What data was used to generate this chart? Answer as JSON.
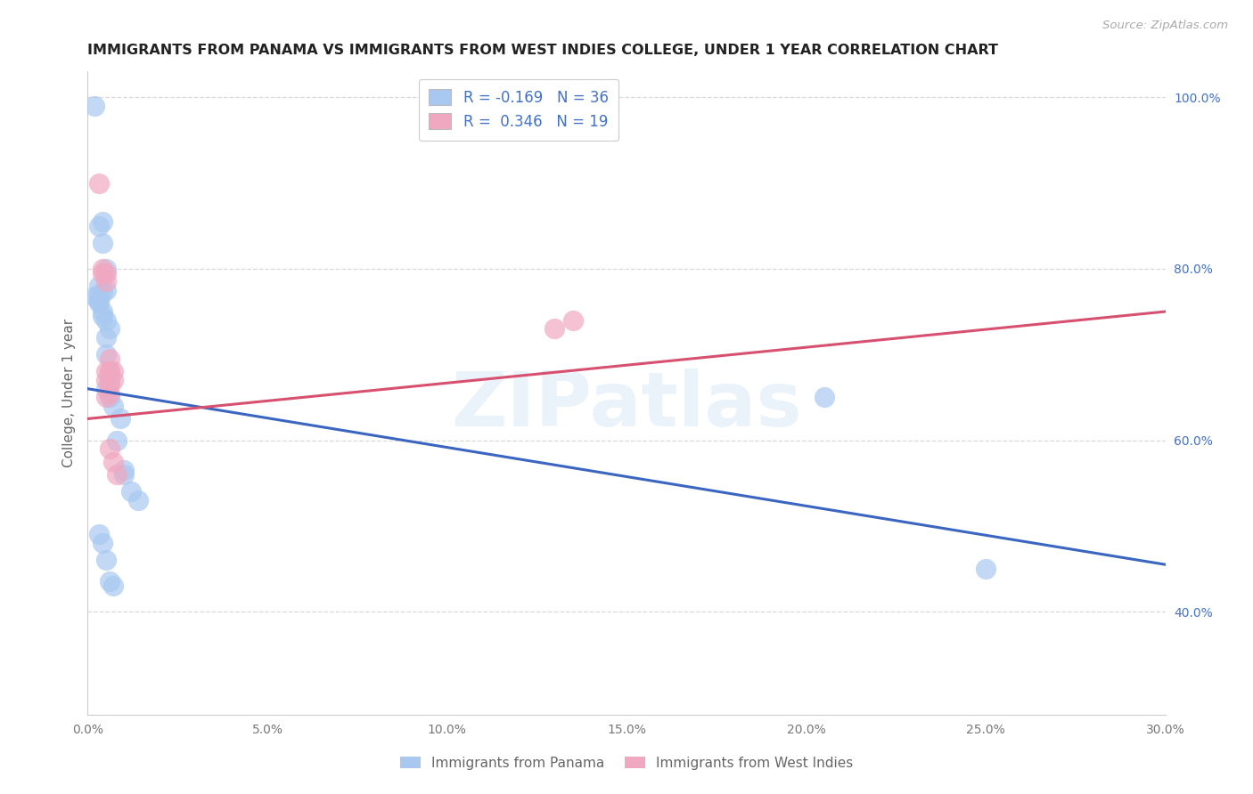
{
  "title": "IMMIGRANTS FROM PANAMA VS IMMIGRANTS FROM WEST INDIES COLLEGE, UNDER 1 YEAR CORRELATION CHART",
  "source": "Source: ZipAtlas.com",
  "ylabel": "College, Under 1 year",
  "xlim": [
    0.0,
    0.3
  ],
  "ylim": [
    0.28,
    1.03
  ],
  "xtick_values": [
    0.0,
    0.05,
    0.1,
    0.15,
    0.2,
    0.25,
    0.3
  ],
  "xtick_labels": [
    "0.0%",
    "5.0%",
    "10.0%",
    "15.0%",
    "20.0%",
    "25.0%",
    "30.0%"
  ],
  "ytick_values_right": [
    0.4,
    0.6,
    0.8,
    1.0
  ],
  "ytick_labels_right": [
    "40.0%",
    "60.0%",
    "80.0%",
    "100.0%"
  ],
  "blue_scatter_color": "#a8c8f0",
  "pink_scatter_color": "#f0a8c0",
  "blue_line_color": "#3a65c0",
  "pink_line_color": "#d85070",
  "legend_blue_label": "R = -0.169   N = 36",
  "legend_pink_label": "R =  0.346   N = 19",
  "watermark": "ZIPatlas",
  "background_color": "#ffffff",
  "grid_color": "#d8d8d8",
  "panama_x": [
    0.002,
    0.004,
    0.003,
    0.004,
    0.005,
    0.003,
    0.005,
    0.004,
    0.003,
    0.002,
    0.003,
    0.003,
    0.004,
    0.004,
    0.005,
    0.006,
    0.005,
    0.005,
    0.006,
    0.006,
    0.005,
    0.006,
    0.007,
    0.009,
    0.008,
    0.01,
    0.01,
    0.012,
    0.014,
    0.003,
    0.004,
    0.005,
    0.006,
    0.007,
    0.205,
    0.25
  ],
  "panama_y": [
    0.99,
    0.855,
    0.85,
    0.83,
    0.8,
    0.78,
    0.775,
    0.773,
    0.77,
    0.768,
    0.762,
    0.76,
    0.75,
    0.745,
    0.74,
    0.73,
    0.72,
    0.7,
    0.68,
    0.67,
    0.66,
    0.65,
    0.64,
    0.625,
    0.6,
    0.565,
    0.56,
    0.54,
    0.53,
    0.49,
    0.48,
    0.46,
    0.435,
    0.43,
    0.65,
    0.45
  ],
  "wi_x": [
    0.003,
    0.004,
    0.004,
    0.005,
    0.005,
    0.005,
    0.005,
    0.006,
    0.006,
    0.006,
    0.006,
    0.007,
    0.007,
    0.005,
    0.006,
    0.007,
    0.008,
    0.13,
    0.135
  ],
  "wi_y": [
    0.9,
    0.8,
    0.795,
    0.795,
    0.785,
    0.68,
    0.67,
    0.695,
    0.68,
    0.665,
    0.655,
    0.68,
    0.67,
    0.65,
    0.59,
    0.575,
    0.56,
    0.73,
    0.74
  ],
  "blue_line_x0": 0.0,
  "blue_line_x1": 0.3,
  "blue_line_y0": 0.66,
  "blue_line_y1": 0.455,
  "pink_line_x0": 0.0,
  "pink_line_x1": 0.3,
  "pink_line_y0": 0.625,
  "pink_line_y1": 0.75
}
